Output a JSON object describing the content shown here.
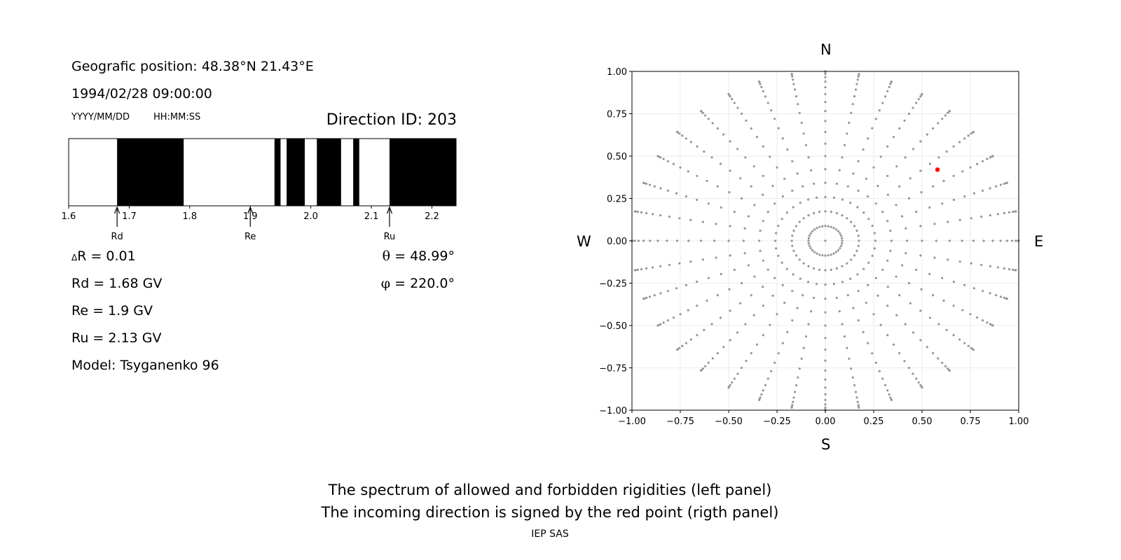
{
  "left_panel": {
    "position_text": "Geografic position: 48.38°N 21.43°E",
    "datetime_text": "1994/02/28 09:00:00",
    "date_format_label": "YYYY/MM/DD",
    "time_format_label": "HH:MM:SS",
    "direction_text": "Direction ID: 203",
    "delta_r_symbol": "Δ",
    "delta_r_text": "R = 0.01",
    "rd_text": "Rd = 1.68 GV",
    "re_text": "Re = 1.9 GV",
    "ru_text": "Ru = 2.13 GV",
    "model_text": "Model: Tsyganenko 96",
    "theta_symbol": "θ",
    "theta_text": " = 48.99°",
    "phi_symbol": "φ",
    "phi_text": " = 220.0°"
  },
  "right_panel": {
    "north_label": "N",
    "south_label": "S",
    "west_label": "W",
    "east_label": "E"
  },
  "caption": {
    "line1": "The spectrum of allowed and forbidden rigidities (left panel)",
    "line2": "The incoming direction is signed by the red point (rigth panel)",
    "footer": "IEP SAS"
  },
  "chart_data": [
    {
      "type": "bar",
      "xlim": [
        1.6,
        2.24
      ],
      "x_ticks": [
        "1.6",
        "1.7",
        "1.8",
        "1.9",
        "2.0",
        "2.1",
        "2.2"
      ],
      "forbidden_intervals": [
        [
          1.68,
          1.79
        ],
        [
          1.94,
          1.95
        ],
        [
          1.96,
          1.99
        ],
        [
          2.01,
          2.05
        ],
        [
          2.07,
          2.08
        ],
        [
          2.13,
          2.24
        ]
      ],
      "markers": [
        {
          "label": "Rd",
          "value": 1.68
        },
        {
          "label": "Re",
          "value": 1.9
        },
        {
          "label": "Ru",
          "value": 2.13
        }
      ],
      "colors": {
        "forbidden": "#000000",
        "allowed": "#ffffff"
      }
    },
    {
      "type": "scatter",
      "xlim": [
        -1.0,
        1.0
      ],
      "ylim": [
        -1.0,
        1.0
      ],
      "x_ticks": [
        "−1.00",
        "−0.75",
        "−0.50",
        "−0.25",
        "0.00",
        "0.25",
        "0.50",
        "0.75",
        "1.00"
      ],
      "y_ticks": [
        "1.00",
        "0.75",
        "0.50",
        "0.25",
        "0.00",
        "−0.25",
        "−0.50",
        "−0.75",
        "−1.00"
      ],
      "grid": true,
      "series": [
        {
          "kind": "grid_points",
          "zenith_step_deg": 5,
          "zenith_max_deg": 90,
          "azimuth_step_deg": 10,
          "inner_ring_azimuth_step_deg": 10,
          "color": "#969696"
        },
        {
          "kind": "highlight",
          "x": 0.58,
          "y": 0.42,
          "color": "#ff0000"
        }
      ]
    }
  ]
}
